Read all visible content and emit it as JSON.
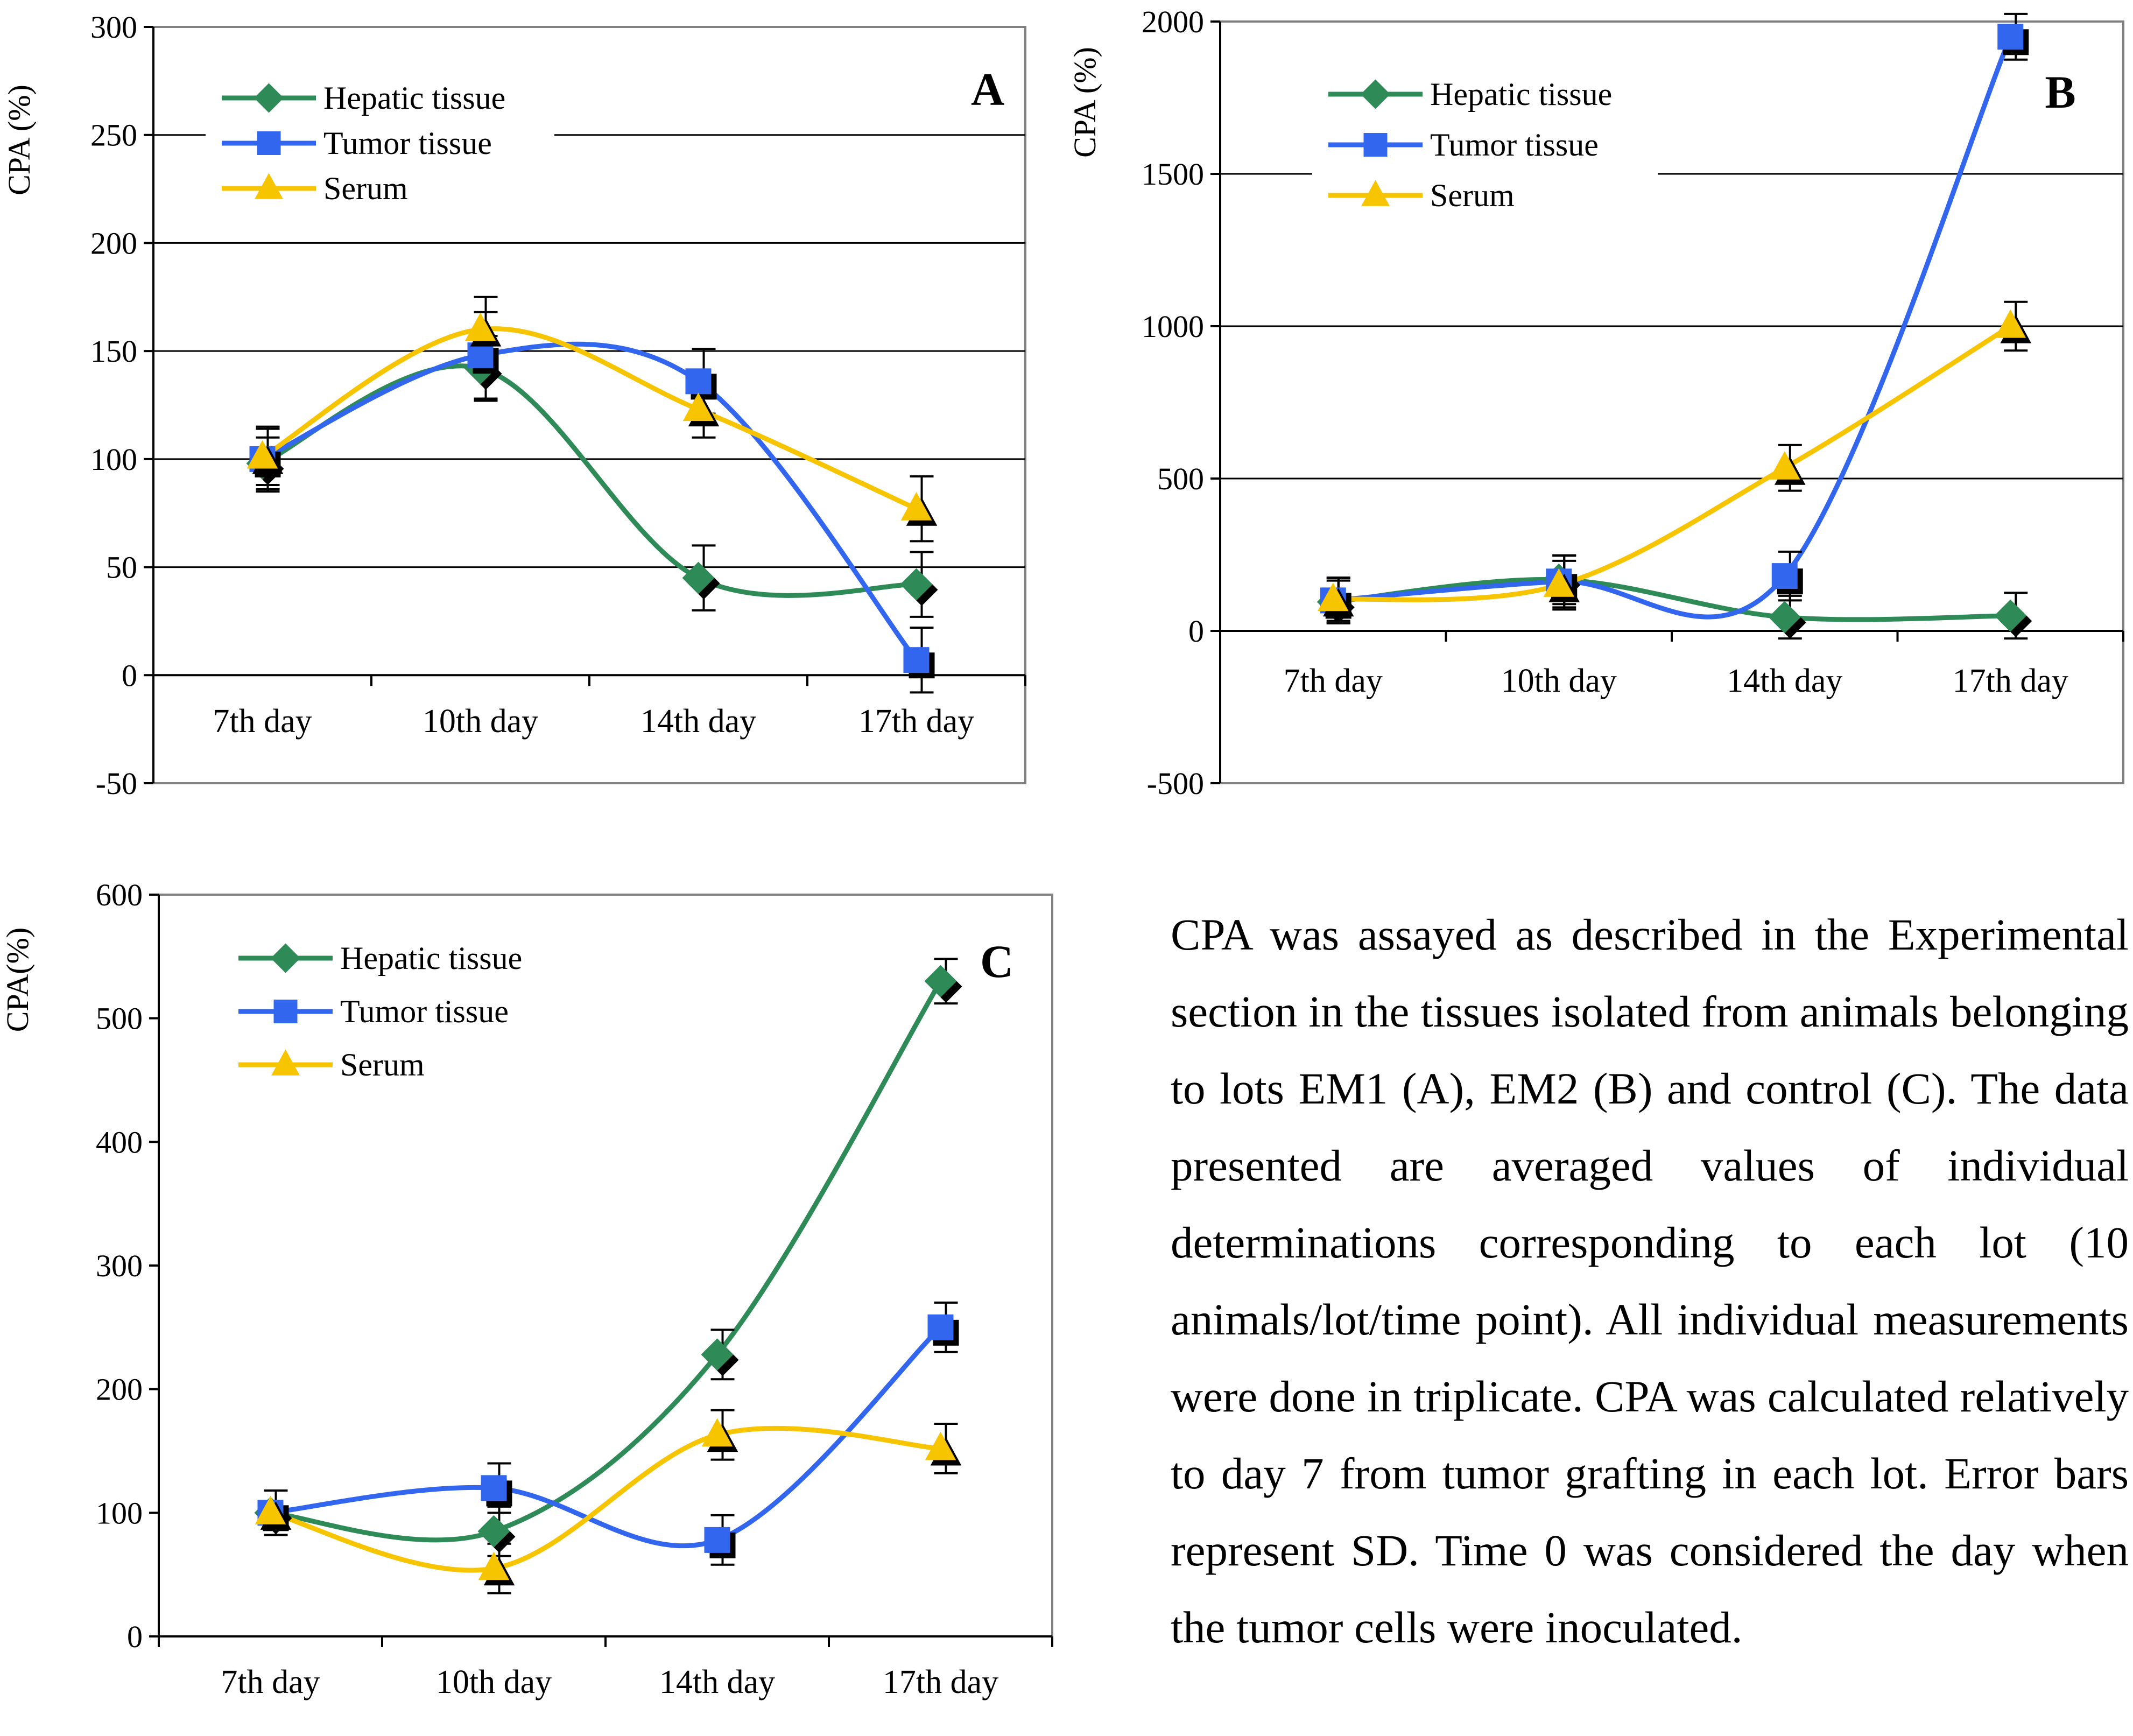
{
  "colors": {
    "hepatic": "#2e8b57",
    "tumor": "#3366ee",
    "serum": "#f7c400",
    "axis": "#000000",
    "grid": "#000000"
  },
  "chart_data": [
    {
      "id": "A",
      "type": "line",
      "panel_label": "A",
      "ylabel": "CPA (%)",
      "xlabel": "",
      "categories": [
        "7th day",
        "10th day",
        "14th day",
        "17th day"
      ],
      "ylim": [
        -50,
        300
      ],
      "yticks": [
        -50,
        0,
        50,
        100,
        150,
        200,
        250,
        300
      ],
      "grid": "horizontal",
      "legend_position": "top-left",
      "series": [
        {
          "name": "Hepatic tissue",
          "key": "hepatic",
          "marker": "diamond",
          "values": [
            98,
            142,
            45,
            42
          ],
          "errors": [
            12,
            15,
            15,
            15
          ]
        },
        {
          "name": "Tumor tissue",
          "key": "tumor",
          "marker": "square",
          "values": [
            100,
            148,
            136,
            7
          ],
          "errors": [
            15,
            20,
            15,
            15
          ]
        },
        {
          "name": "Serum",
          "key": "serum",
          "marker": "triangle",
          "values": [
            101,
            160,
            123,
            77
          ],
          "errors": [
            13,
            15,
            13,
            15
          ]
        }
      ]
    },
    {
      "id": "B",
      "type": "line",
      "panel_label": "B",
      "ylabel": "CPA (%)",
      "xlabel": "",
      "categories": [
        "7th day",
        "10th day",
        "14th day",
        "17th day"
      ],
      "ylim": [
        -500,
        2000
      ],
      "yticks": [
        -500,
        0,
        500,
        1000,
        1500,
        2000
      ],
      "grid": "horizontal",
      "legend_position": "top-left",
      "series": [
        {
          "name": "Hepatic tissue",
          "key": "hepatic",
          "marker": "diamond",
          "values": [
            95,
            168,
            45,
            50
          ],
          "errors": [
            70,
            80,
            70,
            75
          ]
        },
        {
          "name": "Tumor tissue",
          "key": "tumor",
          "marker": "square",
          "values": [
            100,
            162,
            180,
            1950
          ],
          "errors": [
            75,
            85,
            80,
            75
          ]
        },
        {
          "name": "Serum",
          "key": "serum",
          "marker": "triangle",
          "values": [
            103,
            150,
            535,
            1000
          ],
          "errors": [
            70,
            80,
            75,
            80
          ]
        }
      ]
    },
    {
      "id": "C",
      "type": "line",
      "panel_label": "C",
      "ylabel": "CPA(%)",
      "xlabel": "",
      "categories": [
        "7th day",
        "10th day",
        "14th day",
        "17th day"
      ],
      "ylim": [
        0,
        600
      ],
      "yticks": [
        0,
        100,
        200,
        300,
        400,
        500,
        600
      ],
      "grid": "none",
      "legend_position": "top-left",
      "series": [
        {
          "name": "Hepatic tissue",
          "key": "hepatic",
          "marker": "diamond",
          "values": [
            100,
            85,
            228,
            530
          ],
          "errors": [
            18,
            20,
            20,
            18
          ]
        },
        {
          "name": "Tumor tissue",
          "key": "tumor",
          "marker": "square",
          "values": [
            100,
            120,
            78,
            250
          ],
          "errors": [
            18,
            20,
            20,
            20
          ]
        },
        {
          "name": "Serum",
          "key": "serum",
          "marker": "triangle",
          "values": [
            100,
            55,
            163,
            152
          ],
          "errors": [
            18,
            20,
            20,
            20
          ]
        }
      ]
    }
  ],
  "caption": "CPA was assayed as described in the Experimental section in the tissues isolated from animals belonging to lots EM1 (A), EM2 (B) and control (C). The data presented are averaged values of individual determinations corresponding to each lot (10 animals/lot/time point). All individual measurements were done in triplicate. CPA was calculated relatively to day 7 from tumor grafting in each lot. Error bars represent SD. Time 0 was considered the day when the tumor cells were inoculated."
}
